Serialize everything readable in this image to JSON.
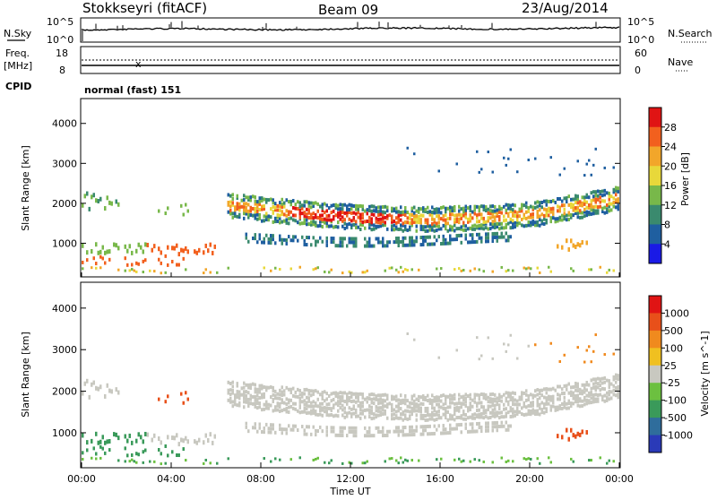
{
  "header": {
    "station": "Stokkseyri (fitACF)",
    "beam": "Beam 09",
    "date": "23/Aug/2014"
  },
  "sky_panel": {
    "left_label": "N.Sky",
    "right_label": "N.Search",
    "left_ticks": [
      "10^5",
      "10^0"
    ],
    "right_ticks": [
      "10^5",
      "10^0"
    ]
  },
  "freq_panel": {
    "left_label_top": "Freq.",
    "left_label_unit": "[MHz]",
    "right_label": "Nave",
    "left_ticks": [
      "18",
      "8"
    ],
    "right_ticks": [
      "60",
      "0"
    ]
  },
  "cpid": {
    "label": "CPID",
    "mode": "normal (fast) 151"
  },
  "chart_data": [
    {
      "type": "heatmap",
      "title": "",
      "quantity": "Power",
      "ylabel": "Slant Range [km]",
      "ylim": [
        180,
        4600
      ],
      "yticks": [
        1000,
        2000,
        3000,
        4000
      ],
      "colorbar_label": "Power [dB]",
      "colorbar_ticks": [
        4,
        8,
        12,
        16,
        20,
        24,
        28
      ],
      "colors": [
        "#1a1ae6",
        "#1f5fa0",
        "#3a8a6e",
        "#78b84a",
        "#e8d83a",
        "#f2a62a",
        "#f2601e",
        "#e01414"
      ]
    },
    {
      "type": "heatmap",
      "title": "",
      "quantity": "Velocity",
      "ylabel": "Slant Range [km]",
      "ylim": [
        180,
        4600
      ],
      "yticks": [
        1000,
        2000,
        3000,
        4000
      ],
      "colorbar_label": "Velocity [m s^-1]",
      "colorbar_ticks": [
        "1000",
        "500",
        "100",
        "25",
        "-25",
        "-100",
        "-500",
        "-1000"
      ],
      "colors": [
        "#2a3ab8",
        "#2f6d9c",
        "#3a9a5a",
        "#6cc040",
        "#c8c8c0",
        "#f0c020",
        "#f08a1e",
        "#e8501a",
        "#e01414"
      ]
    }
  ],
  "time_axis": {
    "xlabel": "Time UT",
    "ticks": [
      "00:00",
      "04:00",
      "08:00",
      "12:00",
      "16:00",
      "20:00",
      "00:00"
    ]
  },
  "colors": {
    "grey_velocity": "#c8c8c0"
  }
}
